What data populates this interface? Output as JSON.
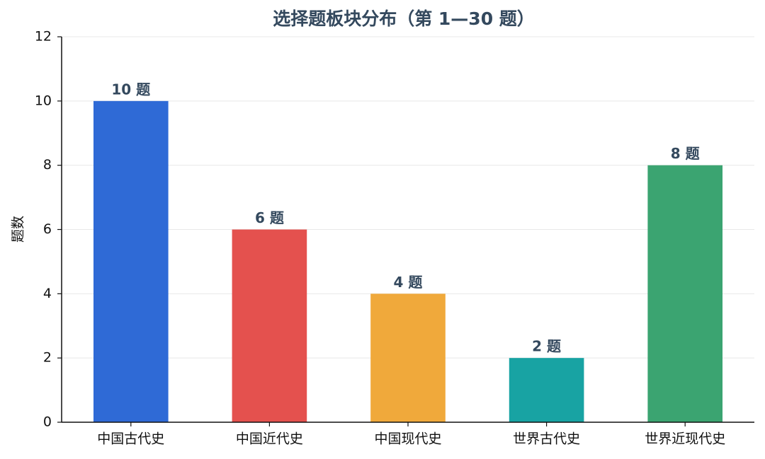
{
  "chart_data": {
    "type": "bar",
    "title": "选择题板块分布（第 1—30 题）",
    "y_label": "题数",
    "categories": [
      "中国古代史",
      "中国近代史",
      "中国现代史",
      "世界古代史",
      "世界近现代史"
    ],
    "values": [
      10,
      6,
      4,
      2,
      8
    ],
    "value_labels": [
      "10 题",
      "6 题",
      "4 题",
      "2 题",
      "8 题"
    ],
    "colors": [
      "#2f6ad6",
      "#e4514e",
      "#f0a93b",
      "#18a3a3",
      "#3ba471"
    ],
    "ylim": [
      0,
      12
    ],
    "yticks": [
      0,
      2,
      4,
      6,
      8,
      10,
      12
    ],
    "grid": true
  }
}
